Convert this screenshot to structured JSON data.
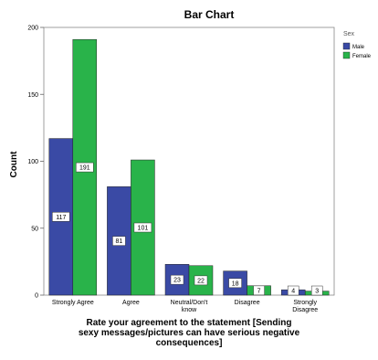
{
  "chart_data": {
    "type": "bar",
    "title": "Bar Chart",
    "xlabel": "Rate your agreement to the statement [Sending sexy messages/pictures can have serious negative consequences]",
    "xlabel_lines": [
      "Rate your agreement to the statement [Sending",
      "sexy messages/pictures can have serious negative",
      "consequences]"
    ],
    "ylabel": "Count",
    "ylim": [
      0,
      200
    ],
    "yticks": [
      0,
      50,
      100,
      150,
      200
    ],
    "categories": [
      "Strongly Agree",
      "Agree",
      "Neutral/Don't know",
      "Disagree",
      "Strongly Disagree"
    ],
    "category_lines": [
      [
        "Strongly Agree"
      ],
      [
        "Agree"
      ],
      [
        "Neutral/Don't",
        "know"
      ],
      [
        "Disagree"
      ],
      [
        "Strongly",
        "Disagree"
      ]
    ],
    "legend_title": "Sex",
    "legend_position": "top-right",
    "grid": false,
    "series": [
      {
        "name": "Male",
        "color": "#3a4aa5",
        "values": [
          117,
          81,
          23,
          18,
          4
        ]
      },
      {
        "name": "Female",
        "color": "#29b34a",
        "values": [
          191,
          101,
          22,
          7,
          3
        ]
      }
    ]
  }
}
